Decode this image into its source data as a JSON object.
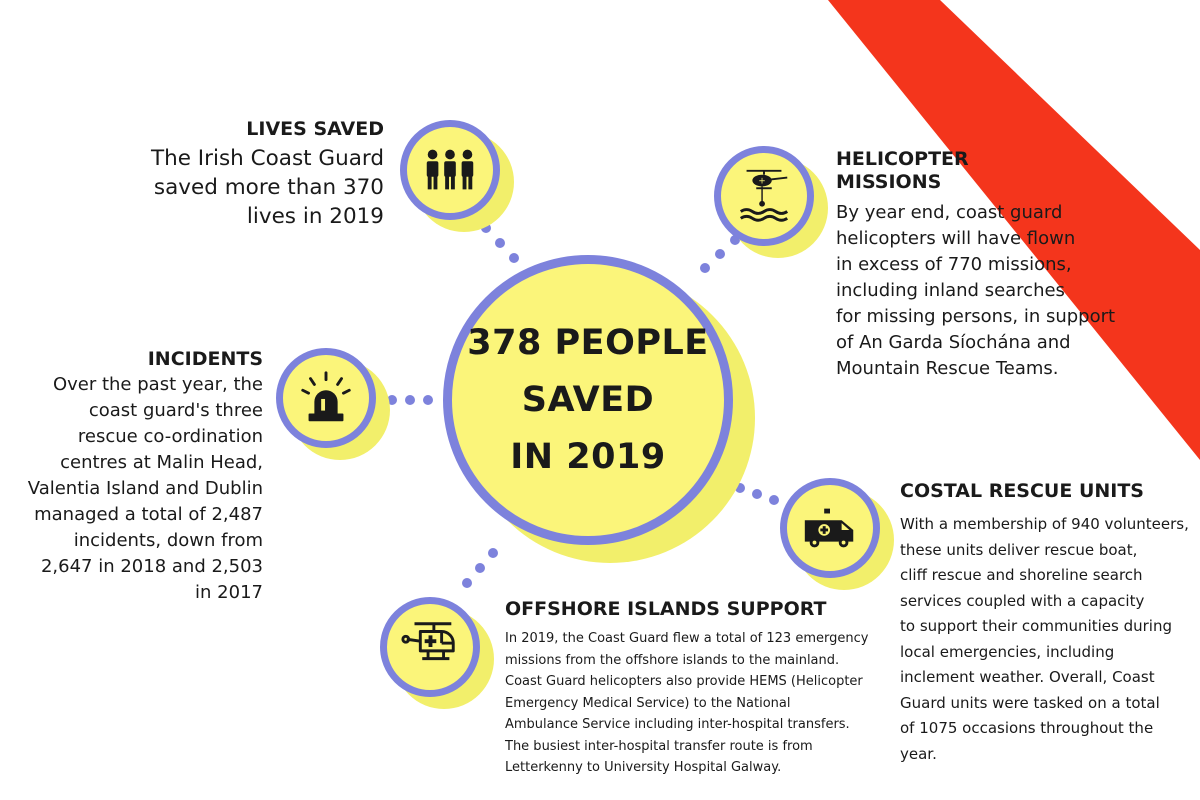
{
  "colors": {
    "stripe": "#f4351c",
    "ring": "#7d82dc",
    "fill": "#fbf57a",
    "text": "#1a1a1a"
  },
  "center": {
    "lines": [
      "378 PEOPLE",
      "SAVED",
      "IN 2019"
    ]
  },
  "lives_saved": {
    "title": "LIVES SAVED",
    "lines": [
      "The Irish Coast Guard",
      "saved more than 370",
      "lives in 2019"
    ],
    "icon": "people-icon"
  },
  "helicopter_missions": {
    "title_lines": [
      "HELICOPTER",
      "MISSIONS"
    ],
    "lines": [
      "By year end, coast guard",
      "helicopters will have flown",
      "in excess of 770 missions,",
      "including inland searches",
      "for missing persons, in support",
      "of An Garda Síochána and",
      "Mountain Rescue Teams."
    ],
    "icon": "helicopter-rescue-icon"
  },
  "incidents": {
    "title": "INCIDENTS",
    "lines": [
      "Over the past year, the",
      "coast guard's three",
      "rescue co-ordination",
      "centres at Malin Head,",
      "Valentia Island and Dublin",
      "managed a total of 2,487",
      "incidents, down from",
      "2,647 in 2018 and 2,503",
      "in 2017"
    ],
    "icon": "siren-icon"
  },
  "coastal_rescue": {
    "title": "COSTAL RESCUE UNITS",
    "lines": [
      "With a membership of 940 volunteers,",
      "these units deliver rescue boat,",
      "cliff rescue and shoreline search",
      "services coupled with a capacity",
      "to support their communities during",
      "local emergencies, including",
      "inclement weather. Overall, Coast",
      "Guard units were tasked on a total",
      "of 1075 occasions throughout the",
      "year."
    ],
    "icon": "ambulance-icon"
  },
  "offshore": {
    "title": "OFFSHORE ISLANDS SUPPORT",
    "lines": [
      "In 2019, the Coast Guard flew a total of 123 emergency",
      "missions from the offshore islands to the mainland.",
      "Coast Guard helicopters also provide HEMS (Helicopter",
      "Emergency Medical Service) to the National",
      "Ambulance Service including inter-hospital transfers.",
      "The busiest inter-hospital transfer route is from",
      "Letterkenny to University Hospital Galway."
    ],
    "icon": "medical-helicopter-icon"
  }
}
